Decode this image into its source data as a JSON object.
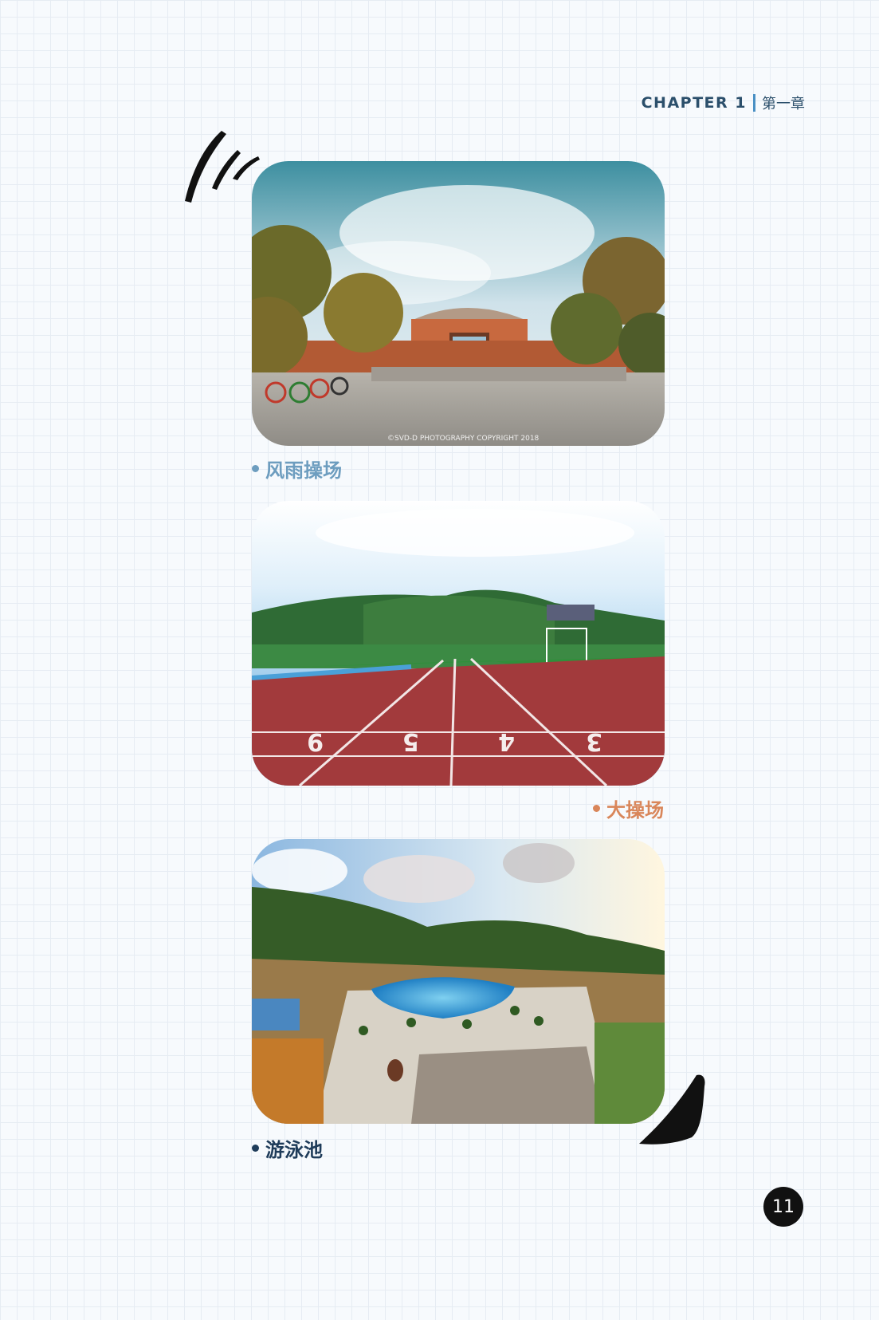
{
  "header": {
    "chapter_en": "CHAPTER 1",
    "chapter_cn": "第一章"
  },
  "photos": [
    {
      "caption": "风雨操场",
      "watermark": "©SVD-D PHOTOGRAPHY COPYRIGHT 2018",
      "caption_color": "#6d9dbf"
    },
    {
      "caption": "大操场",
      "lane_numbers": [
        "9",
        "5",
        "4",
        "3"
      ],
      "caption_color": "#d9865a"
    },
    {
      "caption": "游泳池",
      "caption_color": "#1f3c5a"
    }
  ],
  "page_number": "11",
  "icons": [
    "brush-stroke-icon",
    "brush-corner-icon"
  ]
}
